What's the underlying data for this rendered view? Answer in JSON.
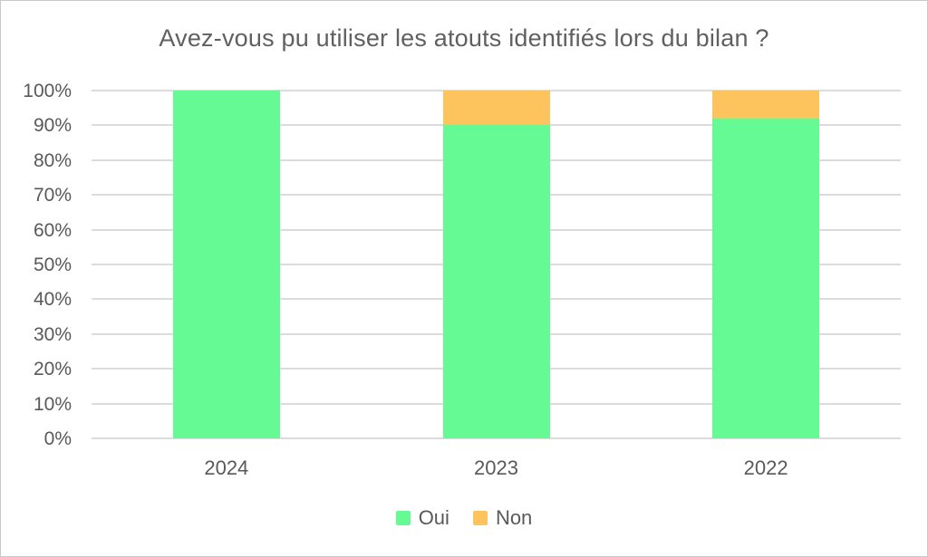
{
  "chart_data": {
    "type": "bar",
    "stacked": true,
    "title": "Avez-vous pu utiliser les atouts identifiés lors du bilan ?",
    "categories": [
      "2024",
      "2023",
      "2022"
    ],
    "series": [
      {
        "name": "Oui",
        "color": "#66fa95",
        "values": [
          100,
          90,
          92
        ]
      },
      {
        "name": "Non",
        "color": "#fdc45d",
        "values": [
          0,
          10,
          8
        ]
      }
    ],
    "xlabel": "",
    "ylabel": "",
    "ylim": [
      0,
      100
    ],
    "y_ticks": [
      "100%",
      "90%",
      "80%",
      "70%",
      "60%",
      "50%",
      "40%",
      "30%",
      "20%",
      "10%",
      "0%"
    ],
    "y_tick_values": [
      100,
      90,
      80,
      70,
      60,
      50,
      40,
      30,
      20,
      10,
      0
    ],
    "grid": true,
    "legend_position": "bottom",
    "colors": {
      "text": "#595959",
      "title_text": "#606060",
      "gridline": "#dcdcdc",
      "frame_border": "#c9c9c9",
      "background": "#ffffff"
    }
  }
}
